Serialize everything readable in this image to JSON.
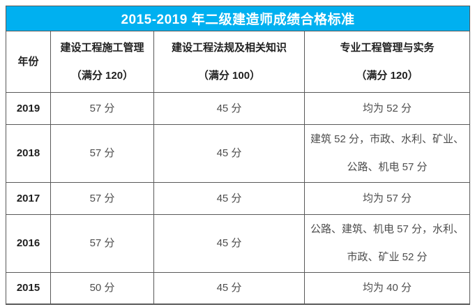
{
  "colors": {
    "title_bg": "#00B0F0",
    "title_text": "#FFFFFF",
    "border": "#595959",
    "header_text": "#1F1F1F",
    "cell_text": "#4D4D4D"
  },
  "chart_data": {
    "type": "table",
    "title": "2015-2019 年二级建造师成绩合格标准",
    "columns": [
      {
        "label": "年份",
        "sub": ""
      },
      {
        "label": "建设工程施工管理",
        "sub": "（满分 120）"
      },
      {
        "label": "建设工程法规及相关知识",
        "sub": "（满分 100）"
      },
      {
        "label": "专业工程管理与实务",
        "sub": "（满分 120）"
      }
    ],
    "rows": [
      {
        "year": "2019",
        "management": "57 分",
        "regulations": "45 分",
        "practice": "均为 52 分"
      },
      {
        "year": "2018",
        "management": "57 分",
        "regulations": "45 分",
        "practice": "建筑 52 分，市政、水利、矿业、公路、机电 57 分"
      },
      {
        "year": "2017",
        "management": "57 分",
        "regulations": "45 分",
        "practice": "均为 57 分"
      },
      {
        "year": "2016",
        "management": "57 分",
        "regulations": "45 分",
        "practice": "公路、建筑、机电 57 分，水利、市政、矿业 52 分"
      },
      {
        "year": "2015",
        "management": "50 分",
        "regulations": "45 分",
        "practice": "均为 40 分"
      }
    ]
  }
}
